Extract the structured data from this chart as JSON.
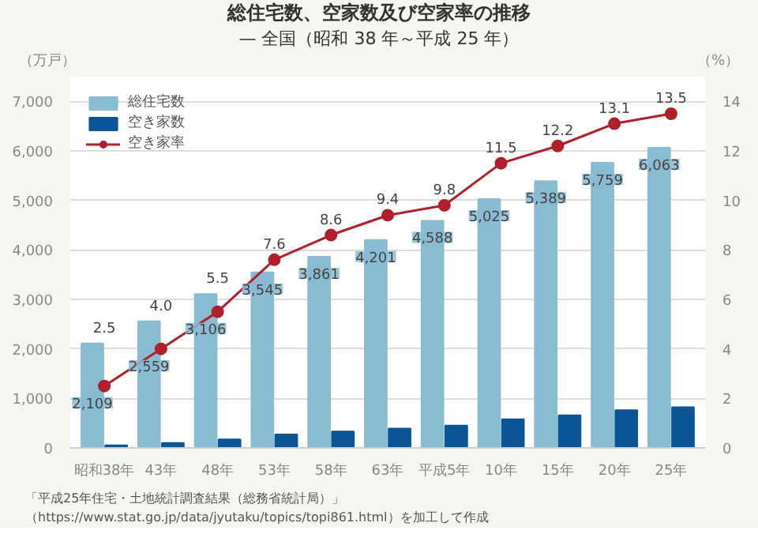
{
  "chart_data": {
    "type": "bar",
    "title": "総住宅数、空家数及び空家率の推移",
    "subtitle": "— 全国（昭和 38 年～平成 25 年）",
    "ylabel": "（万戸）",
    "y2label": "（%）",
    "categories": [
      "昭和38年",
      "43年",
      "48年",
      "53年",
      "58年",
      "63年",
      "平成5年",
      "10年",
      "15年",
      "20年",
      "25年"
    ],
    "series": [
      {
        "name": "総住宅数",
        "color": "#89bcd3",
        "values": [
          2109,
          2559,
          3106,
          3545,
          3861,
          4201,
          4588,
          5025,
          5389,
          5759,
          6063
        ],
        "value_labels": [
          "2,109",
          "2,559",
          "3,106",
          "3,545",
          "3,861",
          "4,201",
          "4,588",
          "5,025",
          "5,389",
          "5,759",
          "6,063"
        ]
      },
      {
        "name": "空き家数",
        "color": "#0a5596",
        "values": [
          50,
          100,
          170,
          270,
          330,
          390,
          450,
          580,
          660,
          760,
          820
        ]
      },
      {
        "name": "空き家率",
        "type": "line",
        "axis": "y2",
        "color": "#b0202a",
        "marker": "circle",
        "values": [
          2.5,
          4.0,
          5.5,
          7.6,
          8.6,
          9.4,
          9.8,
          11.5,
          12.2,
          13.1,
          13.5
        ],
        "value_labels": [
          "2.5",
          "4.0",
          "5.5",
          "7.6",
          "8.6",
          "9.4",
          "9.8",
          "11.5",
          "12.2",
          "13.1",
          "13.5"
        ]
      }
    ],
    "ylim": [
      0,
      7500
    ],
    "yticks": [
      {
        "value": 0,
        "label": "0"
      },
      {
        "value": 1000,
        "label": "1,000"
      },
      {
        "value": 2000,
        "label": "2,000"
      },
      {
        "value": 3000,
        "label": "3,000"
      },
      {
        "value": 4000,
        "label": "4,000"
      },
      {
        "value": 5000,
        "label": "5,000"
      },
      {
        "value": 6000,
        "label": "6,000"
      },
      {
        "value": 7000,
        "label": "7,000"
      }
    ],
    "y2lim": [
      0,
      15
    ],
    "y2ticks": [
      0,
      2,
      4,
      6,
      8,
      10,
      12,
      14
    ],
    "grid": "y",
    "legend": "top left",
    "annotations": [
      "「平成25年住宅・土地統計調査結果（総務省統計局）」",
      "（https://www.stat.go.jp/data/jyutaku/topics/topi861.html）を加工して作成"
    ]
  }
}
